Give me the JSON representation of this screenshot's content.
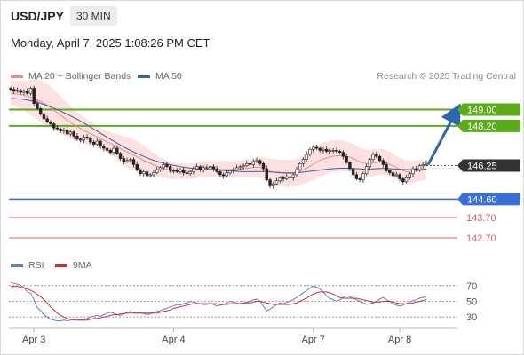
{
  "header": {
    "symbol": "USD/JPY",
    "timeframe": "30 MIN",
    "datetime": "Monday, April 7, 2025 1:08:26 PM CET"
  },
  "legend": {
    "ma20_label": "MA 20 + Bollinger Bands",
    "ma50_label": "MA 50",
    "credit": "Research © 2025 Trading Central",
    "rsi_label": "RSI",
    "rsi_ma_label": "9MA"
  },
  "colors": {
    "ma20": "#f08a8a",
    "ma50": "#3a5f9e",
    "band": "#fcd6d6",
    "resistance": "#5aaa1a",
    "support": "#3a6fd8",
    "minor_support": "#e06060",
    "arrow": "#2e67b0",
    "rsi": "#5b7fd4",
    "rsi_ma": "#d62b2b",
    "current": "#333333"
  },
  "chart_data": [
    {
      "type": "candlestick",
      "name": "price",
      "x_ticks": [
        "Apr 3",
        "Apr 4",
        "Apr 7",
        "Apr 8"
      ],
      "ylim": [
        142.0,
        150.2
      ],
      "levels": [
        {
          "value": "149.00",
          "kind": "resistance"
        },
        {
          "value": "148.20",
          "kind": "resistance"
        },
        {
          "value": "146.25",
          "kind": "current"
        },
        {
          "value": "144.60",
          "kind": "support"
        },
        {
          "value": "143.70",
          "kind": "minor_support"
        },
        {
          "value": "142.70",
          "kind": "minor_support"
        }
      ],
      "projection": {
        "from": 146.3,
        "to": 148.85
      },
      "close": [
        150.0,
        149.9,
        149.95,
        149.85,
        149.9,
        149.8,
        150.05,
        149.3,
        149.05,
        148.8,
        148.55,
        148.4,
        148.3,
        148.1,
        148.05,
        147.95,
        148.0,
        147.8,
        147.9,
        147.7,
        147.55,
        147.5,
        147.65,
        147.6,
        147.4,
        147.3,
        147.45,
        147.2,
        147.1,
        147.0,
        146.9,
        147.1,
        146.85,
        146.6,
        146.45,
        146.5,
        146.55,
        146.3,
        146.05,
        145.85,
        145.95,
        145.75,
        145.8,
        145.9,
        146.05,
        146.15,
        146.3,
        146.2,
        146.0,
        146.0,
        145.95,
        146.05,
        145.9,
        145.85,
        145.95,
        146.1,
        146.2,
        146.05,
        146.15,
        146.15,
        146.2,
        146.1,
        145.95,
        145.8,
        145.75,
        145.9,
        146.0,
        146.05,
        146.15,
        146.2,
        146.25,
        146.35,
        146.3,
        146.45,
        146.5,
        146.35,
        146.1,
        145.55,
        145.25,
        145.35,
        145.5,
        145.65,
        145.6,
        145.7,
        145.65,
        145.8,
        146.05,
        146.35,
        146.55,
        146.8,
        147.05,
        147.15,
        147.1,
        147.0,
        147.05,
        146.95,
        147.0,
        147.0,
        146.95,
        146.9,
        146.7,
        146.4,
        146.1,
        145.8,
        145.6,
        145.55,
        145.85,
        146.2,
        146.55,
        146.8,
        146.7,
        146.5,
        146.3,
        146.0,
        145.9,
        145.75,
        145.8,
        145.6,
        145.45,
        145.65,
        145.85,
        146.1,
        146.05,
        146.25,
        146.3,
        146.35
      ],
      "ma20": [
        149.8,
        149.78,
        149.76,
        149.74,
        149.7,
        149.66,
        149.6,
        149.55,
        149.48,
        149.4,
        149.32,
        149.22,
        149.1,
        148.98,
        148.85,
        148.72,
        148.6,
        148.48,
        148.37,
        148.27,
        148.17,
        148.07,
        147.98,
        147.9,
        147.82,
        147.74,
        147.66,
        147.58,
        147.5,
        147.42,
        147.34,
        147.26,
        147.17,
        147.08,
        147.0,
        146.92,
        146.84,
        146.76,
        146.68,
        146.6,
        146.52,
        146.44,
        146.36,
        146.29,
        146.22,
        146.16,
        146.11,
        146.06,
        146.02,
        145.99,
        145.97,
        145.96,
        145.96,
        145.97,
        145.98,
        146.0,
        146.02,
        146.04,
        146.06,
        146.07,
        146.08,
        146.08,
        146.08,
        146.07,
        146.06,
        146.05,
        146.05,
        146.05,
        146.06,
        146.08,
        146.1,
        146.12,
        146.14,
        146.16,
        146.17,
        146.16,
        146.12,
        146.05,
        145.98,
        145.93,
        145.9,
        145.88,
        145.87,
        145.86,
        145.86,
        145.88,
        145.92,
        145.98,
        146.05,
        146.13,
        146.22,
        146.32,
        146.42,
        146.5,
        146.57,
        146.62,
        146.67,
        146.71,
        146.73,
        146.74,
        146.73,
        146.7,
        146.66,
        146.6,
        146.52,
        146.44,
        146.38,
        146.35,
        146.35,
        146.38,
        146.41,
        146.43,
        146.42,
        146.38,
        146.32,
        146.24,
        146.16,
        146.08,
        146.0,
        145.95,
        145.93,
        145.94,
        145.97,
        146.0,
        146.03,
        146.06
      ],
      "ma50": [
        149.55,
        149.54,
        149.53,
        149.52,
        149.5,
        149.47,
        149.44,
        149.4,
        149.36,
        149.31,
        149.26,
        149.2,
        149.14,
        149.07,
        149.0,
        148.93,
        148.85,
        148.77,
        148.69,
        148.61,
        148.52,
        148.43,
        148.34,
        148.24,
        148.14,
        148.04,
        147.94,
        147.84,
        147.74,
        147.64,
        147.54,
        147.45,
        147.35,
        147.26,
        147.17,
        147.08,
        147.0,
        146.92,
        146.84,
        146.77,
        146.7,
        146.63,
        146.57,
        146.51,
        146.46,
        146.41,
        146.37,
        146.33,
        146.29,
        146.26,
        146.23,
        146.2,
        146.17,
        146.15,
        146.13,
        146.11,
        146.09,
        146.08,
        146.07,
        146.06,
        146.05,
        146.04,
        146.03,
        146.02,
        146.01,
        146.0,
        145.99,
        145.98,
        145.97,
        145.96,
        145.95,
        145.95,
        145.95,
        145.95,
        145.96,
        145.96,
        145.96,
        145.95,
        145.94,
        145.93,
        145.92,
        145.91,
        145.9,
        145.89,
        145.89,
        145.89,
        145.9,
        145.91,
        145.93,
        145.95,
        145.97,
        145.99,
        146.01,
        146.03,
        146.05,
        146.07,
        146.09,
        146.1,
        146.11,
        146.12,
        146.12,
        146.12,
        146.12,
        146.11,
        146.1,
        146.09,
        146.08,
        146.08,
        146.08,
        146.09,
        146.1,
        146.11,
        146.11,
        146.11,
        146.1,
        146.09,
        146.08,
        146.07,
        146.06,
        146.05,
        146.05,
        146.05,
        146.05,
        146.06,
        146.07,
        146.08
      ],
      "band_width": [
        0.6,
        0.62,
        0.64,
        0.68,
        0.72,
        0.78,
        0.85,
        0.92,
        0.98,
        1.02,
        1.05,
        1.05,
        1.03,
        1.0,
        0.96,
        0.92,
        0.88,
        0.84,
        0.8,
        0.76,
        0.72,
        0.68,
        0.64,
        0.6,
        0.57,
        0.55,
        0.53,
        0.52,
        0.52,
        0.53,
        0.55,
        0.58,
        0.62,
        0.66,
        0.7,
        0.73,
        0.75,
        0.76,
        0.75,
        0.73,
        0.7,
        0.66,
        0.62,
        0.58,
        0.54,
        0.5,
        0.46,
        0.43,
        0.41,
        0.4,
        0.39,
        0.38,
        0.38,
        0.38,
        0.38,
        0.38,
        0.38,
        0.39,
        0.4,
        0.4,
        0.4,
        0.4,
        0.4,
        0.41,
        0.42,
        0.42,
        0.42,
        0.42,
        0.42,
        0.43,
        0.44,
        0.45,
        0.46,
        0.47,
        0.48,
        0.5,
        0.52,
        0.56,
        0.6,
        0.64,
        0.66,
        0.67,
        0.67,
        0.67,
        0.66,
        0.66,
        0.66,
        0.67,
        0.69,
        0.72,
        0.75,
        0.78,
        0.8,
        0.81,
        0.81,
        0.8,
        0.79,
        0.78,
        0.77,
        0.76,
        0.75,
        0.74,
        0.73,
        0.72,
        0.71,
        0.7,
        0.69,
        0.68,
        0.67,
        0.66,
        0.65,
        0.64,
        0.63,
        0.62,
        0.61,
        0.6,
        0.59,
        0.58,
        0.57,
        0.56,
        0.55,
        0.54,
        0.53,
        0.52,
        0.51,
        0.5
      ]
    },
    {
      "type": "line",
      "name": "rsi",
      "ylim": [
        20,
        80
      ],
      "ticks": [
        "70",
        "50",
        "30"
      ],
      "series": [
        {
          "name": "RSI",
          "values": [
            74,
            73,
            72,
            70,
            68,
            62,
            60,
            52,
            42,
            38,
            33,
            30,
            27,
            26,
            25,
            25,
            26,
            25,
            26,
            27,
            27,
            26,
            26,
            28,
            30,
            31,
            32,
            31,
            33,
            35,
            36,
            35,
            33,
            32,
            34,
            36,
            37,
            36,
            35,
            36,
            34,
            33,
            34,
            36,
            37,
            38,
            40,
            41,
            43,
            44,
            46,
            45,
            47,
            48,
            50,
            49,
            48,
            47,
            46,
            46,
            47,
            46,
            44,
            45,
            46,
            48,
            50,
            49,
            48,
            47,
            48,
            49,
            50,
            52,
            53,
            50,
            44,
            38,
            40,
            43,
            46,
            48,
            47,
            49,
            50,
            52,
            55,
            58,
            61,
            64,
            67,
            69,
            68,
            66,
            62,
            57,
            54,
            52,
            50,
            52,
            55,
            57,
            56,
            54,
            52,
            50,
            48,
            46,
            47,
            48,
            50,
            53,
            55,
            52,
            50,
            47,
            45,
            44,
            45,
            47,
            49,
            51,
            52,
            54,
            55,
            56
          ]
        },
        {
          "name": "9MA",
          "values": [
            69,
            69,
            69,
            68,
            67,
            66,
            64,
            62,
            59,
            56,
            52,
            48,
            43,
            39,
            35,
            32,
            30,
            28,
            27,
            26,
            26,
            26,
            26,
            26,
            27,
            28,
            28,
            29,
            30,
            31,
            32,
            33,
            33,
            34,
            34,
            35,
            35,
            35,
            35,
            35,
            35,
            35,
            35,
            35,
            35,
            36,
            37,
            38,
            39,
            41,
            42,
            43,
            44,
            45,
            46,
            47,
            47,
            47,
            47,
            47,
            47,
            47,
            47,
            46,
            46,
            46,
            47,
            47,
            47,
            47,
            47,
            48,
            48,
            49,
            50,
            50,
            49,
            48,
            47,
            46,
            46,
            46,
            46,
            46,
            46,
            47,
            48,
            50,
            52,
            54,
            57,
            59,
            61,
            62,
            62,
            62,
            61,
            59,
            57,
            55,
            54,
            54,
            54,
            54,
            54,
            53,
            52,
            51,
            50,
            49,
            49,
            49,
            50,
            50,
            50,
            49,
            48,
            47,
            47,
            47,
            47,
            48,
            49,
            50,
            51,
            52
          ]
        }
      ]
    }
  ]
}
